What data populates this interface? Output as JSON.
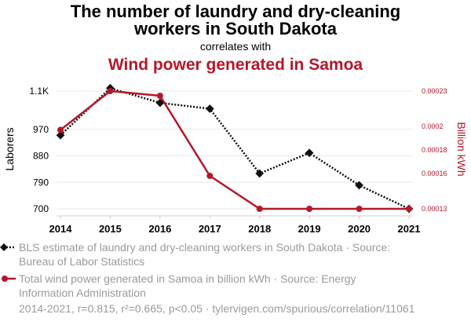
{
  "header": {
    "title_line1": "The number of laundry and dry-cleaning",
    "title_line2": "workers in South Dakota",
    "correlates": "correlates with",
    "second_title": "Wind power generated in Samoa"
  },
  "colors": {
    "series1": "#111111",
    "series2": "#b5172b",
    "muted": "#9a9a9a"
  },
  "legend": {
    "series1_line1": "BLS estimate of laundry and dry-cleaning workers in South Dakota · Source:",
    "series1_line2": "Bureau of Labor Statistics",
    "series2_line1": "Total wind power generated in Samoa in billion kWh · Source: Energy",
    "series2_line2": "Information Administration"
  },
  "footer": {
    "text": "2014-2021, r=0.815, r²=0.665, p<0.05 · tylervigen.com/spurious/correlation/11061"
  },
  "chart_data": {
    "type": "line",
    "x": [
      2014,
      2015,
      2016,
      2017,
      2018,
      2019,
      2020,
      2021
    ],
    "x_tick_labels": [
      "2014",
      "2015",
      "2016",
      "2017",
      "2018",
      "2019",
      "2020",
      "2021"
    ],
    "ylabel_left": "Laborers",
    "ylabel_right": "Billion kWh",
    "y_left_range": [
      700,
      1100
    ],
    "y_left_ticks": [
      700,
      790,
      880,
      970,
      1100
    ],
    "y_left_tick_labels": [
      "700",
      "790",
      "880",
      "970",
      "1.1K"
    ],
    "y_right_range": [
      0.00013,
      0.00023
    ],
    "y_right_ticks": [
      0.00013,
      0.00016,
      0.00018,
      0.0002,
      0.00023
    ],
    "y_right_tick_labels": [
      "0.00013",
      "0.00016",
      "0.00018",
      "0.0002",
      "0.00023"
    ],
    "grid": true,
    "series": [
      {
        "axis": "left",
        "style": "dotted",
        "marker": "diamond",
        "values": [
          950,
          1110,
          1060,
          1040,
          820,
          890,
          780,
          700
        ]
      },
      {
        "axis": "right",
        "style": "solid",
        "marker": "circle",
        "values": [
          0.000197,
          0.00023,
          0.000226,
          0.000158,
          0.00013,
          0.00013,
          0.00013,
          0.00013
        ]
      }
    ]
  }
}
